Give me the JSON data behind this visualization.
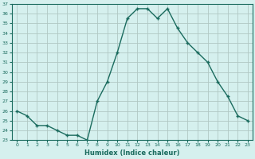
{
  "x": [
    0,
    1,
    2,
    3,
    4,
    5,
    6,
    7,
    8,
    9,
    10,
    11,
    12,
    13,
    14,
    15,
    16,
    17,
    18,
    19,
    20,
    21,
    22,
    23
  ],
  "y": [
    26,
    25.5,
    24.5,
    24.5,
    24,
    23.5,
    23.5,
    23,
    27,
    29,
    32,
    35.5,
    36.5,
    36.5,
    35.5,
    36.5,
    34.5,
    33,
    32,
    31,
    29,
    27.5,
    25.5,
    25
  ],
  "xlabel": "Humidex (Indice chaleur)",
  "ylim": [
    23,
    37
  ],
  "xlim": [
    -0.5,
    23.5
  ],
  "yticks": [
    23,
    24,
    25,
    26,
    27,
    28,
    29,
    30,
    31,
    32,
    33,
    34,
    35,
    36,
    37
  ],
  "xticks": [
    0,
    1,
    2,
    3,
    4,
    5,
    6,
    7,
    8,
    9,
    10,
    11,
    12,
    13,
    14,
    15,
    16,
    17,
    18,
    19,
    20,
    21,
    22,
    23
  ],
  "line_color": "#1a6b5e",
  "bg_color": "#d5f0ee",
  "grid_color": "#b0c8c4",
  "marker": "+"
}
